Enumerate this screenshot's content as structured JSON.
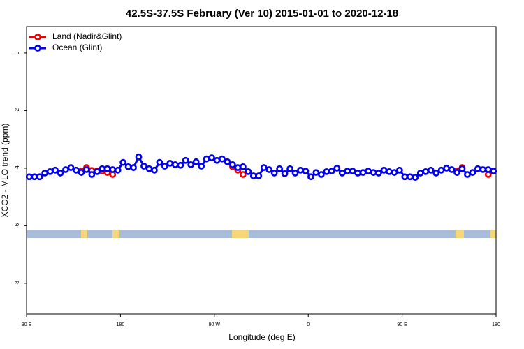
{
  "chart_data": {
    "type": "line",
    "title": "42.5S-37.5S February (Ver 10)   2015-01-01 to 2020-12-18",
    "xlabel": "Longitude (deg E)",
    "ylabel": "XCO2 - MLO trend (ppm)",
    "legend": "top-left",
    "xlim": [
      90,
      540
    ],
    "ylim": [
      -9.07,
      0.92
    ],
    "xticks": [
      {
        "value": 90,
        "label": "90 E"
      },
      180,
      {
        "value": 270,
        "label": "90 W"
      },
      {
        "value": 360,
        "label": "0"
      },
      {
        "value": 450,
        "label": "90 E"
      },
      {
        "value": 540,
        "label": "180"
      }
    ],
    "yticks": [
      0,
      -2,
      -4,
      -6,
      -8
    ],
    "x": [
      92.5,
      97.5,
      102.5,
      107.5,
      112.5,
      117.5,
      122.5,
      127.5,
      132.5,
      137.5,
      142.5,
      147.5,
      152.5,
      157.5,
      162.5,
      167.5,
      172.5,
      177.5,
      182.5,
      187.5,
      192.5,
      197.5,
      202.5,
      207.5,
      212.5,
      217.5,
      222.5,
      227.5,
      232.5,
      237.5,
      242.5,
      247.5,
      252.5,
      257.5,
      262.5,
      267.5,
      272.5,
      277.5,
      282.5,
      287.5,
      292.5,
      297.5,
      302.5,
      307.5,
      312.5,
      317.5,
      322.5,
      327.5,
      332.5,
      337.5,
      342.5,
      347.5,
      352.5,
      357.5,
      362.5,
      367.5,
      372.5,
      377.5,
      382.5,
      387.5,
      392.5,
      397.5,
      402.5,
      407.5,
      412.5,
      417.5,
      422.5,
      427.5,
      432.5,
      437.5,
      442.5,
      447.5,
      452.5,
      457.5,
      462.5,
      467.5,
      472.5,
      477.5,
      482.5,
      487.5,
      492.5,
      497.5,
      502.5,
      507.5,
      512.5,
      517.5,
      522.5,
      527.5,
      532.5,
      537.5
    ],
    "series": [
      {
        "name": "Land (Nadir&Glint)",
        "color": "#ee0000",
        "values": [
          null,
          null,
          null,
          null,
          null,
          null,
          null,
          null,
          null,
          null,
          -4.1,
          -3.98,
          -4.08,
          -4.1,
          -4.1,
          -4.15,
          -4.22,
          null,
          null,
          null,
          null,
          null,
          null,
          null,
          null,
          null,
          null,
          null,
          null,
          null,
          null,
          null,
          null,
          null,
          null,
          null,
          null,
          null,
          null,
          -3.95,
          -4.07,
          -4.22,
          null,
          null,
          null,
          null,
          null,
          null,
          null,
          null,
          null,
          null,
          null,
          null,
          null,
          null,
          null,
          null,
          null,
          null,
          null,
          null,
          null,
          null,
          null,
          null,
          null,
          null,
          null,
          null,
          null,
          null,
          null,
          null,
          null,
          null,
          null,
          null,
          null,
          null,
          null,
          null,
          -4.1,
          -3.98,
          null,
          null,
          null,
          null,
          -4.22,
          -4.1
        ]
      },
      {
        "name": "Ocean (Glint)",
        "color": "#0000ee",
        "values": [
          -4.3,
          -4.3,
          -4.3,
          -4.17,
          -4.12,
          -4.07,
          -4.17,
          -4.05,
          -3.98,
          -4.07,
          -4.15,
          -4.05,
          -4.22,
          -4.12,
          -4.02,
          -4.02,
          -4.05,
          -4.07,
          -3.8,
          -3.95,
          -3.98,
          -3.61,
          -3.93,
          -4.02,
          -4.07,
          -3.8,
          -3.93,
          -3.83,
          -3.88,
          -3.9,
          -3.73,
          -3.88,
          -3.78,
          -3.93,
          -3.68,
          -3.64,
          -3.73,
          -3.68,
          -3.78,
          -3.88,
          -3.98,
          -3.95,
          -4.12,
          -4.27,
          -4.27,
          -3.98,
          -4.05,
          -4.17,
          -4.02,
          -4.19,
          -4.02,
          -4.17,
          -4.07,
          -4.1,
          -4.3,
          -4.15,
          -4.22,
          -4.12,
          -4.1,
          -4.0,
          -4.17,
          -4.1,
          -4.1,
          -4.17,
          -4.15,
          -4.1,
          -4.15,
          -4.17,
          -4.07,
          -4.12,
          -4.15,
          -4.07,
          -4.3,
          -4.3,
          -4.32,
          -4.17,
          -4.12,
          -4.07,
          -4.17,
          -4.07,
          -4.0,
          -4.05,
          -4.15,
          -4.02,
          -4.22,
          -4.15,
          -4.02,
          -4.05,
          -4.05,
          -4.1
        ]
      }
    ]
  }
}
